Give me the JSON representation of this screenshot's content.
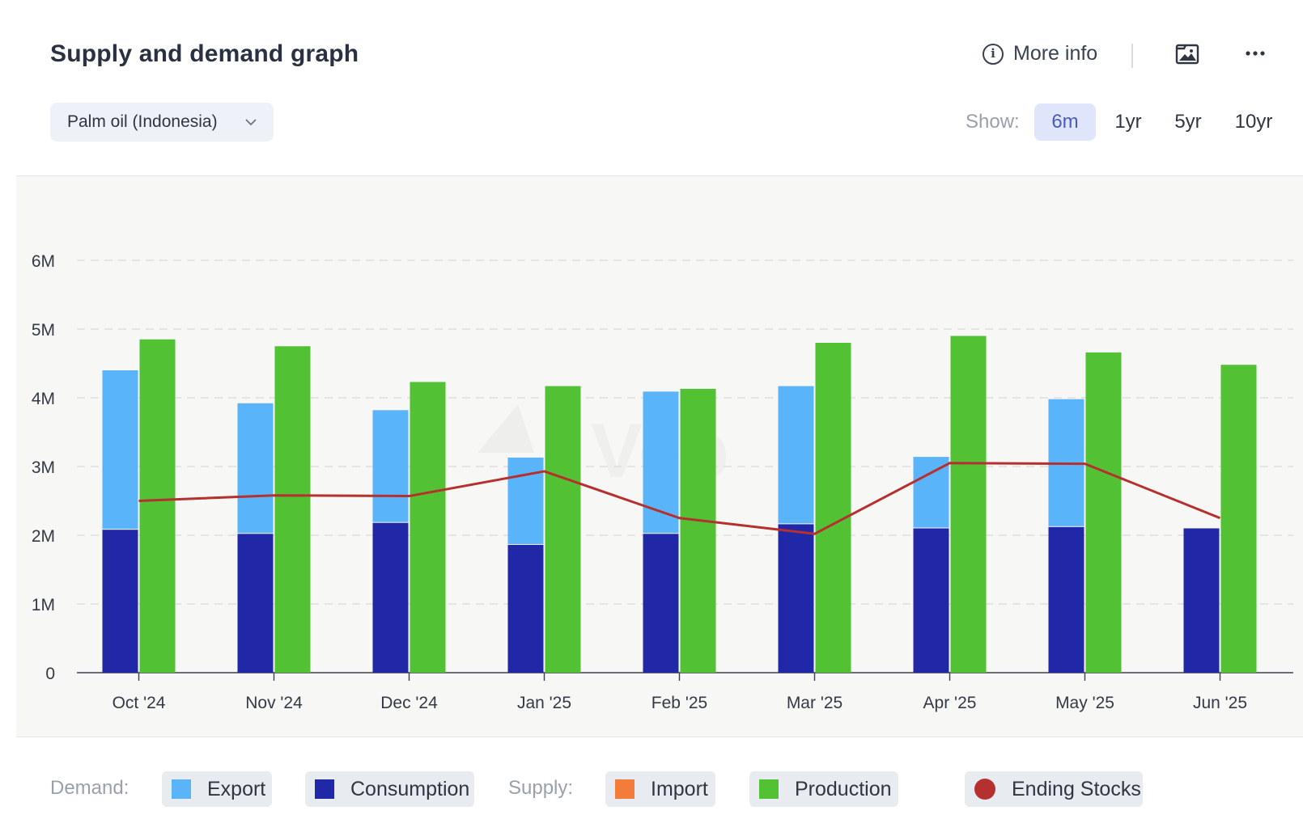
{
  "header": {
    "title": "Supply and demand graph",
    "more_info_label": "More info"
  },
  "icons": {
    "info": "info-icon",
    "image": "image-icon",
    "more": "more-horizontal-icon",
    "chevron": "chevron-down-icon"
  },
  "commodity_select": {
    "value": "Palm oil (Indonesia)"
  },
  "range": {
    "label": "Show:",
    "options": [
      "6m",
      "1yr",
      "5yr",
      "10yr"
    ],
    "selected": "6m"
  },
  "legend": {
    "demand_label": "Demand:",
    "supply_label": "Supply:",
    "items": [
      "Export",
      "Consumption",
      "Import",
      "Production",
      "Ending Stocks"
    ]
  },
  "colors": {
    "export": "#5ab4f9",
    "consumption": "#2128a8",
    "import": "#f47c3a",
    "production": "#52c234",
    "ending_stocks": "#b5302e",
    "accent": "#4a5ac0"
  },
  "chart_data": {
    "type": "bar",
    "title": "",
    "xlabel": "",
    "ylabel": "",
    "ylim": [
      0,
      6000000
    ],
    "yticks": [
      "0",
      "1M",
      "2M",
      "3M",
      "4M",
      "5M",
      "6M"
    ],
    "grid": true,
    "legend_position": "bottom",
    "categories": [
      "Oct '24",
      "Nov '24",
      "Dec '24",
      "Jan '25",
      "Feb '25",
      "Mar '25",
      "Apr '25",
      "May '25",
      "Jun '25"
    ],
    "series": [
      {
        "name": "Consumption",
        "stack": "demand",
        "values": [
          2080000,
          2020000,
          2180000,
          1860000,
          2020000,
          2160000,
          2100000,
          2120000,
          2100000
        ]
      },
      {
        "name": "Export",
        "stack": "demand",
        "values": [
          2320000,
          1900000,
          1640000,
          1270000,
          2070000,
          2010000,
          1040000,
          1860000,
          0
        ]
      },
      {
        "name": "Import",
        "stack": "supply",
        "values": [
          0,
          0,
          0,
          0,
          0,
          0,
          0,
          0,
          0
        ]
      },
      {
        "name": "Production",
        "stack": "supply",
        "values": [
          4850000,
          4750000,
          4230000,
          4170000,
          4130000,
          4800000,
          4900000,
          4660000,
          4480000
        ]
      },
      {
        "name": "Ending Stocks",
        "type": "line",
        "values": [
          2500000,
          2580000,
          2570000,
          2930000,
          2250000,
          2020000,
          3050000,
          3040000,
          2250000
        ]
      }
    ]
  }
}
